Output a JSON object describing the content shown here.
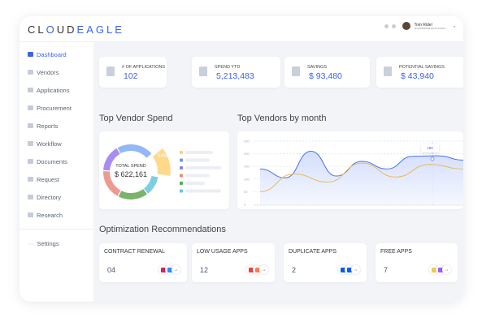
{
  "app": {
    "logo_left": "CL",
    "logo_o": "O",
    "logo_mid": "UD",
    "logo_right": "EAGLE"
  },
  "user": {
    "name": "Tom Ridel",
    "title": "VP ENTERPRISE APPLICATIONS"
  },
  "sidebar": {
    "items": [
      {
        "label": "Dashboard",
        "icon": "home-icon",
        "active": true
      },
      {
        "label": "Vendors",
        "icon": "store-icon"
      },
      {
        "label": "Applications",
        "icon": "grid-icon"
      },
      {
        "label": "Procurement",
        "icon": "procurement-icon"
      },
      {
        "label": "Reports",
        "icon": "report-icon"
      },
      {
        "label": "Workflow",
        "icon": "workflow-icon"
      },
      {
        "label": "Documents",
        "icon": "folder-icon"
      },
      {
        "label": "Request",
        "icon": "request-icon"
      },
      {
        "label": "Directory",
        "icon": "directory-icon"
      },
      {
        "label": "Research",
        "icon": "research-icon"
      }
    ],
    "settings": "Settings"
  },
  "stats": [
    {
      "label": "# OF APPLICATIONS",
      "value": "102"
    },
    {
      "label": "SPEND YTD",
      "value": "5,213,483"
    },
    {
      "label": "SAVINGS",
      "value": "$ 93,480"
    },
    {
      "label": "POTENTIAL SAVINGS",
      "value": "$ 43,940"
    }
  ],
  "sections": {
    "vendor_spend": "Top Vendor Spend",
    "by_month": "Top Vendors by month",
    "optimization": "Optimization Recommendations"
  },
  "donut": {
    "total_label": "TOTAL SPEND",
    "total_value": "$ 622,161",
    "highlight_label": "14%",
    "segments": [
      {
        "color": "#93b8f7",
        "value": 22
      },
      {
        "color": "#ffd98a",
        "value": 14
      },
      {
        "color": "#7ccfe0",
        "value": 12
      },
      {
        "color": "#7bb36a",
        "value": 18
      },
      {
        "color": "#ee9a92",
        "value": 18
      },
      {
        "color": "#a98cf2",
        "value": 16
      }
    ],
    "legend_colors": [
      "#ffd166",
      "#6d93f2",
      "#7f86f5",
      "#f08a6a",
      "#4caf50",
      "#5bc8ef"
    ]
  },
  "chart_data": {
    "type": "line",
    "ylim": [
      0,
      250
    ],
    "yticks": [
      "0",
      "50",
      "100",
      "150",
      "200",
      "250"
    ],
    "series": [
      {
        "color": "#4a72f0",
        "values": [
          140,
          105,
          210,
          112,
          170,
          140,
          190,
          192,
          175
        ]
      },
      {
        "color": "#e8bb5a",
        "values": [
          50,
          120,
          88,
          163,
          108,
          158,
          140
        ]
      }
    ],
    "tooltip": "180"
  },
  "optimization": [
    {
      "label": "CONTRACT RENEWAL",
      "value": "04",
      "more": "+2",
      "icons": [
        "slack-icon",
        "zoom-icon"
      ]
    },
    {
      "label": "LOW USAGE APPS",
      "value": "12",
      "more": "+9",
      "icons": [
        "zapier-icon",
        "hubspot-icon"
      ]
    },
    {
      "label": "DUPLICATE APPS",
      "value": "2",
      "more": "+5",
      "icons": [
        "box-icon",
        "dropbox-icon"
      ]
    },
    {
      "label": "FREE APPS",
      "value": "7",
      "more": "+4",
      "icons": [
        "miro-icon",
        "figma-icon"
      ]
    }
  ]
}
